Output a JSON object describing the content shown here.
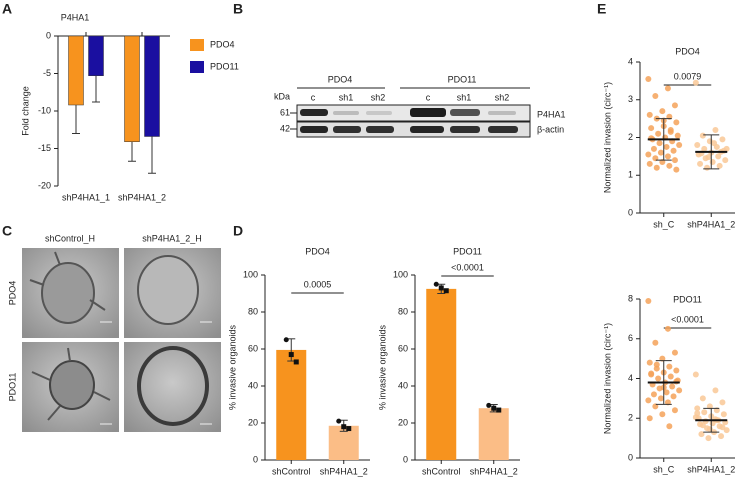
{
  "chart_data": [
    {
      "panel": "A",
      "type": "bar",
      "title": "P4HA1",
      "y_label": "Fold change",
      "categories": [
        "shP4HA1_1",
        "shP4HA1_2"
      ],
      "series": [
        {
          "name": "PDO4",
          "color": "#f7931e",
          "values": [
            -9.2,
            -14.1
          ],
          "errors": [
            3.8,
            2.6
          ]
        },
        {
          "name": "PDO11",
          "color": "#1a0fa0",
          "values": [
            -5.3,
            -13.4
          ],
          "errors": [
            3.5,
            4.9
          ]
        }
      ],
      "ylim": [
        -20,
        0
      ],
      "yticks": [
        0,
        -5,
        -10,
        -15,
        -20
      ],
      "legend": "right"
    },
    {
      "panel": "D",
      "type": "bar_dots",
      "title": "PDO4",
      "p_value": "0.0005",
      "y_label": "% invasive organoids",
      "categories": [
        "shControl",
        "shP4HA1_2"
      ],
      "colors": [
        "#f7931e",
        "#fbbd86"
      ],
      "values": [
        59.5,
        18.5
      ],
      "errors": [
        6,
        3
      ],
      "points": [
        [
          65,
          57,
          53
        ],
        [
          21,
          18,
          17
        ]
      ],
      "ylim": [
        0,
        100
      ],
      "yticks": [
        0,
        20,
        40,
        60,
        80,
        100
      ]
    },
    {
      "type": "bar_dots",
      "title": "PDO11",
      "p_value": "<0.0001",
      "y_label": "% invasive organoids",
      "categories": [
        "shControl",
        "shP4HA1_2"
      ],
      "colors": [
        "#f7931e",
        "#fbbd86"
      ],
      "values": [
        92.5,
        28
      ],
      "errors": [
        2.5,
        2
      ],
      "points": [
        [
          95,
          93,
          91.5
        ],
        [
          29.5,
          28,
          27
        ]
      ],
      "ylim": [
        0,
        100
      ],
      "yticks": [
        0,
        20,
        40,
        60,
        80,
        100
      ]
    },
    {
      "panel": "E",
      "type": "dot",
      "title": "PDO4",
      "p_value": "0.0079",
      "y_label": "Normalized invasion (circ⁻¹)",
      "categories": [
        "sh_C",
        "shP4HA1_2"
      ],
      "colors": [
        "#f4a259",
        "#f9c896"
      ],
      "points": [
        [
          3.55,
          3.3,
          3.1,
          2.85,
          2.7,
          2.6,
          2.55,
          2.5,
          2.4,
          2.3,
          2.25,
          2.2,
          2.1,
          2.05,
          2.0,
          1.95,
          1.9,
          1.85,
          1.8,
          1.75,
          1.7,
          1.65,
          1.6,
          1.55,
          1.5,
          1.45,
          1.4,
          1.35,
          1.3,
          1.25,
          1.2,
          1.15,
          2.45,
          1.98,
          2.15
        ],
        [
          3.45,
          2.2,
          2.05,
          1.95,
          1.9,
          1.8,
          1.75,
          1.7,
          1.65,
          1.6,
          1.55,
          1.5,
          1.45,
          1.4,
          1.35,
          1.3,
          1.25,
          1.2,
          1.7,
          1.85,
          1.58,
          1.62,
          1.48
        ]
      ],
      "means": [
        1.95,
        1.62
      ],
      "sds": [
        0.55,
        0.45
      ],
      "ylim": [
        0,
        4
      ],
      "yticks": [
        0,
        1,
        2,
        3,
        4
      ]
    },
    {
      "type": "dot",
      "title": "PDO11",
      "p_value": "<0.0001",
      "y_label": "Normalized invasion (circ⁻¹)",
      "categories": [
        "sh_C",
        "shP4HA1_2"
      ],
      "colors": [
        "#f4a259",
        "#f9c896"
      ],
      "points": [
        [
          7.9,
          6.5,
          5.8,
          5.3,
          5.0,
          4.8,
          4.6,
          4.5,
          4.4,
          4.3,
          4.2,
          4.1,
          4.0,
          3.9,
          3.8,
          3.7,
          3.6,
          3.5,
          3.4,
          3.3,
          3.2,
          3.1,
          3.0,
          2.9,
          2.8,
          2.6,
          2.4,
          2.2,
          2.0,
          1.6,
          4.7,
          3.85,
          3.55,
          4.25
        ],
        [
          4.2,
          3.4,
          3.0,
          2.8,
          2.6,
          2.5,
          2.4,
          2.3,
          2.2,
          2.1,
          2.0,
          1.9,
          1.85,
          1.8,
          1.75,
          1.7,
          1.6,
          1.5,
          1.4,
          1.3,
          1.2,
          1.1,
          1.0,
          2.05,
          1.95,
          1.65,
          1.55,
          1.45,
          2.25,
          1.9
        ]
      ],
      "means": [
        3.8,
        1.9
      ],
      "sds": [
        1.1,
        0.6
      ],
      "ylim": [
        0,
        8
      ],
      "yticks": [
        0,
        2,
        4,
        6,
        8
      ]
    }
  ],
  "blot": {
    "panel": "B",
    "kda_label": "kDa",
    "groups": [
      "PDO4",
      "PDO11"
    ],
    "lanes": [
      "c",
      "sh1",
      "sh2",
      "c",
      "sh1",
      "sh2"
    ],
    "markers": [
      61,
      42
    ],
    "proteins": [
      "P4HA1",
      "β-actin"
    ]
  },
  "micrographs": {
    "panel": "C",
    "columns": [
      "shControl_H",
      "shP4HA1_2_H"
    ],
    "rows": [
      "PDO4",
      "PDO11"
    ]
  }
}
